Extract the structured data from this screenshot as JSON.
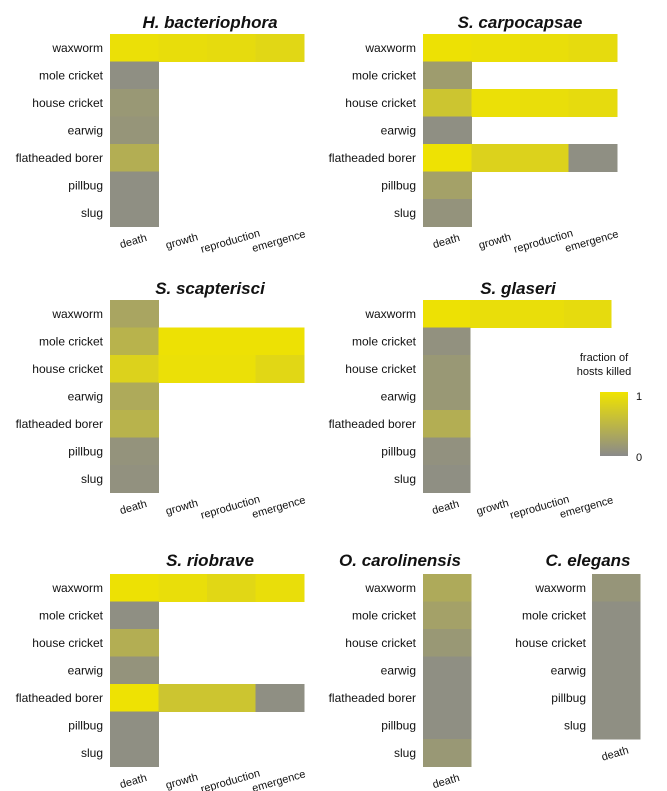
{
  "legend": {
    "title_line1": "fraction of",
    "title_line2": "hosts killed",
    "max_label": "1",
    "min_label": "0"
  },
  "colors": {
    "low": "#8a8a8a",
    "high": "#f0e400"
  },
  "chart_data": [
    {
      "type": "heatmap",
      "title": "H. bacteriophora",
      "rows": [
        "waxworm",
        "mole cricket",
        "house cricket",
        "earwig",
        "flatheaded borer",
        "pillbug",
        "slug"
      ],
      "columns": [
        "death",
        "growth",
        "reproduction",
        "emergence"
      ],
      "values": [
        [
          0.95,
          0.92,
          0.9,
          0.85
        ],
        [
          0.05,
          null,
          null,
          null
        ],
        [
          0.15,
          null,
          null,
          null
        ],
        [
          0.12,
          null,
          null,
          null
        ],
        [
          0.4,
          null,
          null,
          null
        ],
        [
          0.05,
          null,
          null,
          null
        ],
        [
          0.05,
          null,
          null,
          null
        ]
      ],
      "value_range": [
        0,
        1
      ]
    },
    {
      "type": "heatmap",
      "title": "S. carpocapsae",
      "rows": [
        "waxworm",
        "mole cricket",
        "house cricket",
        "earwig",
        "flatheaded borer",
        "pillbug",
        "slug"
      ],
      "columns": [
        "death",
        "growth",
        "reproduction",
        "emergence"
      ],
      "values": [
        [
          0.97,
          0.95,
          0.93,
          0.9
        ],
        [
          0.2,
          null,
          null,
          null
        ],
        [
          0.65,
          0.95,
          0.93,
          0.9
        ],
        [
          0.05,
          null,
          null,
          null
        ],
        [
          0.98,
          0.8,
          0.8,
          0.05
        ],
        [
          0.25,
          null,
          null,
          null
        ],
        [
          0.1,
          null,
          null,
          null
        ]
      ],
      "value_range": [
        0,
        1
      ]
    },
    {
      "type": "heatmap",
      "title": "S. scapterisci",
      "rows": [
        "waxworm",
        "mole cricket",
        "house cricket",
        "earwig",
        "flatheaded borer",
        "pillbug",
        "slug"
      ],
      "columns": [
        "death",
        "growth",
        "reproduction",
        "emergence"
      ],
      "values": [
        [
          0.3,
          null,
          null,
          null
        ],
        [
          0.45,
          0.97,
          0.97,
          0.97
        ],
        [
          0.8,
          0.95,
          0.95,
          0.85
        ],
        [
          0.35,
          null,
          null,
          null
        ],
        [
          0.45,
          null,
          null,
          null
        ],
        [
          0.1,
          null,
          null,
          null
        ],
        [
          0.08,
          null,
          null,
          null
        ]
      ],
      "value_range": [
        0,
        1
      ]
    },
    {
      "type": "heatmap",
      "title": "S. glaseri",
      "rows": [
        "waxworm",
        "mole cricket",
        "house cricket",
        "earwig",
        "flatheaded borer",
        "pillbug",
        "slug"
      ],
      "columns": [
        "death",
        "growth",
        "reproduction",
        "emergence"
      ],
      "values": [
        [
          0.97,
          0.93,
          0.93,
          0.9
        ],
        [
          0.08,
          null,
          null,
          null
        ],
        [
          0.15,
          null,
          null,
          null
        ],
        [
          0.15,
          null,
          null,
          null
        ],
        [
          0.4,
          null,
          null,
          null
        ],
        [
          0.08,
          null,
          null,
          null
        ],
        [
          0.05,
          null,
          null,
          null
        ]
      ],
      "value_range": [
        0,
        1
      ]
    },
    {
      "type": "heatmap",
      "title": "S. riobrave",
      "rows": [
        "waxworm",
        "mole cricket",
        "house cricket",
        "earwig",
        "flatheaded borer",
        "pillbug",
        "slug"
      ],
      "columns": [
        "death",
        "growth",
        "reproduction",
        "emergence"
      ],
      "values": [
        [
          0.97,
          0.93,
          0.85,
          0.93
        ],
        [
          0.05,
          null,
          null,
          null
        ],
        [
          0.4,
          null,
          null,
          null
        ],
        [
          0.1,
          null,
          null,
          null
        ],
        [
          0.98,
          0.65,
          0.65,
          0.05
        ],
        [
          0.05,
          null,
          null,
          null
        ],
        [
          0.05,
          null,
          null,
          null
        ]
      ],
      "value_range": [
        0,
        1
      ]
    },
    {
      "type": "heatmap",
      "title": "O. carolinensis",
      "rows": [
        "waxworm",
        "mole cricket",
        "house cricket",
        "earwig",
        "flatheaded borer",
        "pillbug",
        "slug"
      ],
      "columns": [
        "death"
      ],
      "values": [
        [
          0.35
        ],
        [
          0.25
        ],
        [
          0.15
        ],
        [
          0.05
        ],
        [
          0.05
        ],
        [
          0.05
        ],
        [
          0.15
        ]
      ],
      "value_range": [
        0,
        1
      ]
    },
    {
      "type": "heatmap",
      "title": "C. elegans",
      "rows": [
        "waxworm",
        "mole cricket",
        "house cricket",
        "earwig",
        "pillbug",
        "slug"
      ],
      "columns": [
        "death"
      ],
      "values": [
        [
          0.12
        ],
        [
          0.05
        ],
        [
          0.05
        ],
        [
          0.05
        ],
        [
          0.05
        ],
        [
          0.05
        ]
      ],
      "value_range": [
        0,
        1
      ]
    }
  ]
}
